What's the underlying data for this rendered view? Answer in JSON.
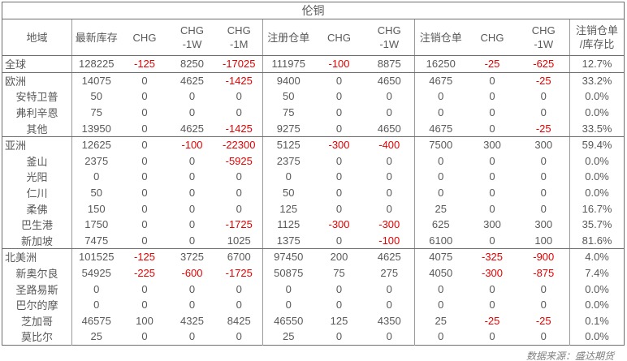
{
  "title": "伦铜",
  "source_note": "数据来源：盛达期货",
  "colors": {
    "text": "#595959",
    "negative": "#e60000",
    "border_dark": "#6e6e6e",
    "border_light": "#9a9a9a"
  },
  "chart_data": {
    "type": "table",
    "title": "伦铜",
    "headers": [
      [
        "地域"
      ],
      [
        "最新库存"
      ],
      [
        "CHG"
      ],
      [
        "CHG",
        "-1W"
      ],
      [
        "CHG",
        "-1M"
      ],
      [
        "注册仓单"
      ],
      [
        "CHG"
      ],
      [
        "CHG",
        "-1W"
      ],
      [
        "注销仓单"
      ],
      [
        "CHG"
      ],
      [
        "CHG",
        "-1W"
      ],
      [
        "注销仓单",
        "/库存比"
      ]
    ],
    "rows": [
      {
        "region": "全球",
        "level": "parent",
        "group_end": true,
        "values": [
          "128225",
          "-125",
          "8250",
          "-17025",
          "111975",
          "-100",
          "8875",
          "16250",
          "-25",
          "-625",
          "12.7%"
        ]
      },
      {
        "region": "欧洲",
        "level": "parent",
        "group_end": false,
        "values": [
          "14075",
          "0",
          "4625",
          "-1425",
          "9400",
          "0",
          "4650",
          "4675",
          "0",
          "-25",
          "33.2%"
        ]
      },
      {
        "region": "安特卫普",
        "level": "child",
        "group_end": false,
        "values": [
          "50",
          "0",
          "0",
          "0",
          "50",
          "0",
          "0",
          "0",
          "0",
          "0",
          "0.0%"
        ]
      },
      {
        "region": "弗利辛恩",
        "level": "child",
        "group_end": false,
        "values": [
          "75",
          "0",
          "0",
          "0",
          "75",
          "0",
          "0",
          "0",
          "0",
          "0",
          "0.0%"
        ]
      },
      {
        "region": "其他",
        "level": "child",
        "group_end": true,
        "values": [
          "13950",
          "0",
          "4625",
          "-1425",
          "9275",
          "0",
          "4650",
          "4675",
          "0",
          "-25",
          "33.5%"
        ]
      },
      {
        "region": "亚洲",
        "level": "parent",
        "group_end": false,
        "values": [
          "12625",
          "0",
          "-100",
          "-22300",
          "5125",
          "-300",
          "-400",
          "7500",
          "300",
          "300",
          "59.4%"
        ]
      },
      {
        "region": "釜山",
        "level": "child",
        "group_end": false,
        "values": [
          "2375",
          "0",
          "0",
          "-5925",
          "2375",
          "0",
          "0",
          "0",
          "0",
          "0",
          "0.0%"
        ]
      },
      {
        "region": "光阳",
        "level": "child",
        "group_end": false,
        "values": [
          "0",
          "0",
          "0",
          "0",
          "0",
          "0",
          "0",
          "0",
          "0",
          "0",
          "0.0%"
        ]
      },
      {
        "region": "仁川",
        "level": "child",
        "group_end": false,
        "values": [
          "50",
          "0",
          "0",
          "0",
          "50",
          "0",
          "0",
          "0",
          "0",
          "0",
          "0.0%"
        ]
      },
      {
        "region": "柔佛",
        "level": "child",
        "group_end": false,
        "values": [
          "150",
          "0",
          "0",
          "0",
          "125",
          "0",
          "0",
          "25",
          "0",
          "0",
          "16.7%"
        ]
      },
      {
        "region": "巴生港",
        "level": "child",
        "group_end": false,
        "values": [
          "1750",
          "0",
          "0",
          "-1725",
          "1125",
          "-300",
          "-300",
          "625",
          "300",
          "300",
          "35.7%"
        ]
      },
      {
        "region": "新加坡",
        "level": "child",
        "group_end": true,
        "values": [
          "7475",
          "0",
          "0",
          "1025",
          "1375",
          "0",
          "-100",
          "6100",
          "0",
          "100",
          "81.6%"
        ]
      },
      {
        "region": "北美洲",
        "level": "parent",
        "group_end": false,
        "values": [
          "101525",
          "-125",
          "3725",
          "6700",
          "97450",
          "200",
          "4625",
          "4075",
          "-325",
          "-900",
          "4.0%"
        ]
      },
      {
        "region": "新奥尔良",
        "level": "child",
        "group_end": false,
        "values": [
          "54925",
          "-225",
          "-600",
          "-1725",
          "50875",
          "75",
          "275",
          "4050",
          "-300",
          "-875",
          "7.4%"
        ]
      },
      {
        "region": "圣路易斯",
        "level": "child",
        "group_end": false,
        "values": [
          "0",
          "0",
          "0",
          "0",
          "0",
          "0",
          "0",
          "0",
          "0",
          "0",
          "0.0%"
        ]
      },
      {
        "region": "巴尔的摩",
        "level": "child",
        "group_end": false,
        "values": [
          "0",
          "0",
          "0",
          "0",
          "0",
          "0",
          "0",
          "0",
          "0",
          "0",
          "0.0%"
        ]
      },
      {
        "region": "芝加哥",
        "level": "child",
        "group_end": false,
        "values": [
          "46575",
          "100",
          "4325",
          "8425",
          "46550",
          "125",
          "4350",
          "25",
          "-25",
          "-25",
          "0.1%"
        ]
      },
      {
        "region": "莫比尔",
        "level": "child",
        "group_end": false,
        "values": [
          "25",
          "0",
          "0",
          "0",
          "25",
          "0",
          "0",
          "0",
          "0",
          "0",
          "0.0%"
        ]
      }
    ]
  }
}
